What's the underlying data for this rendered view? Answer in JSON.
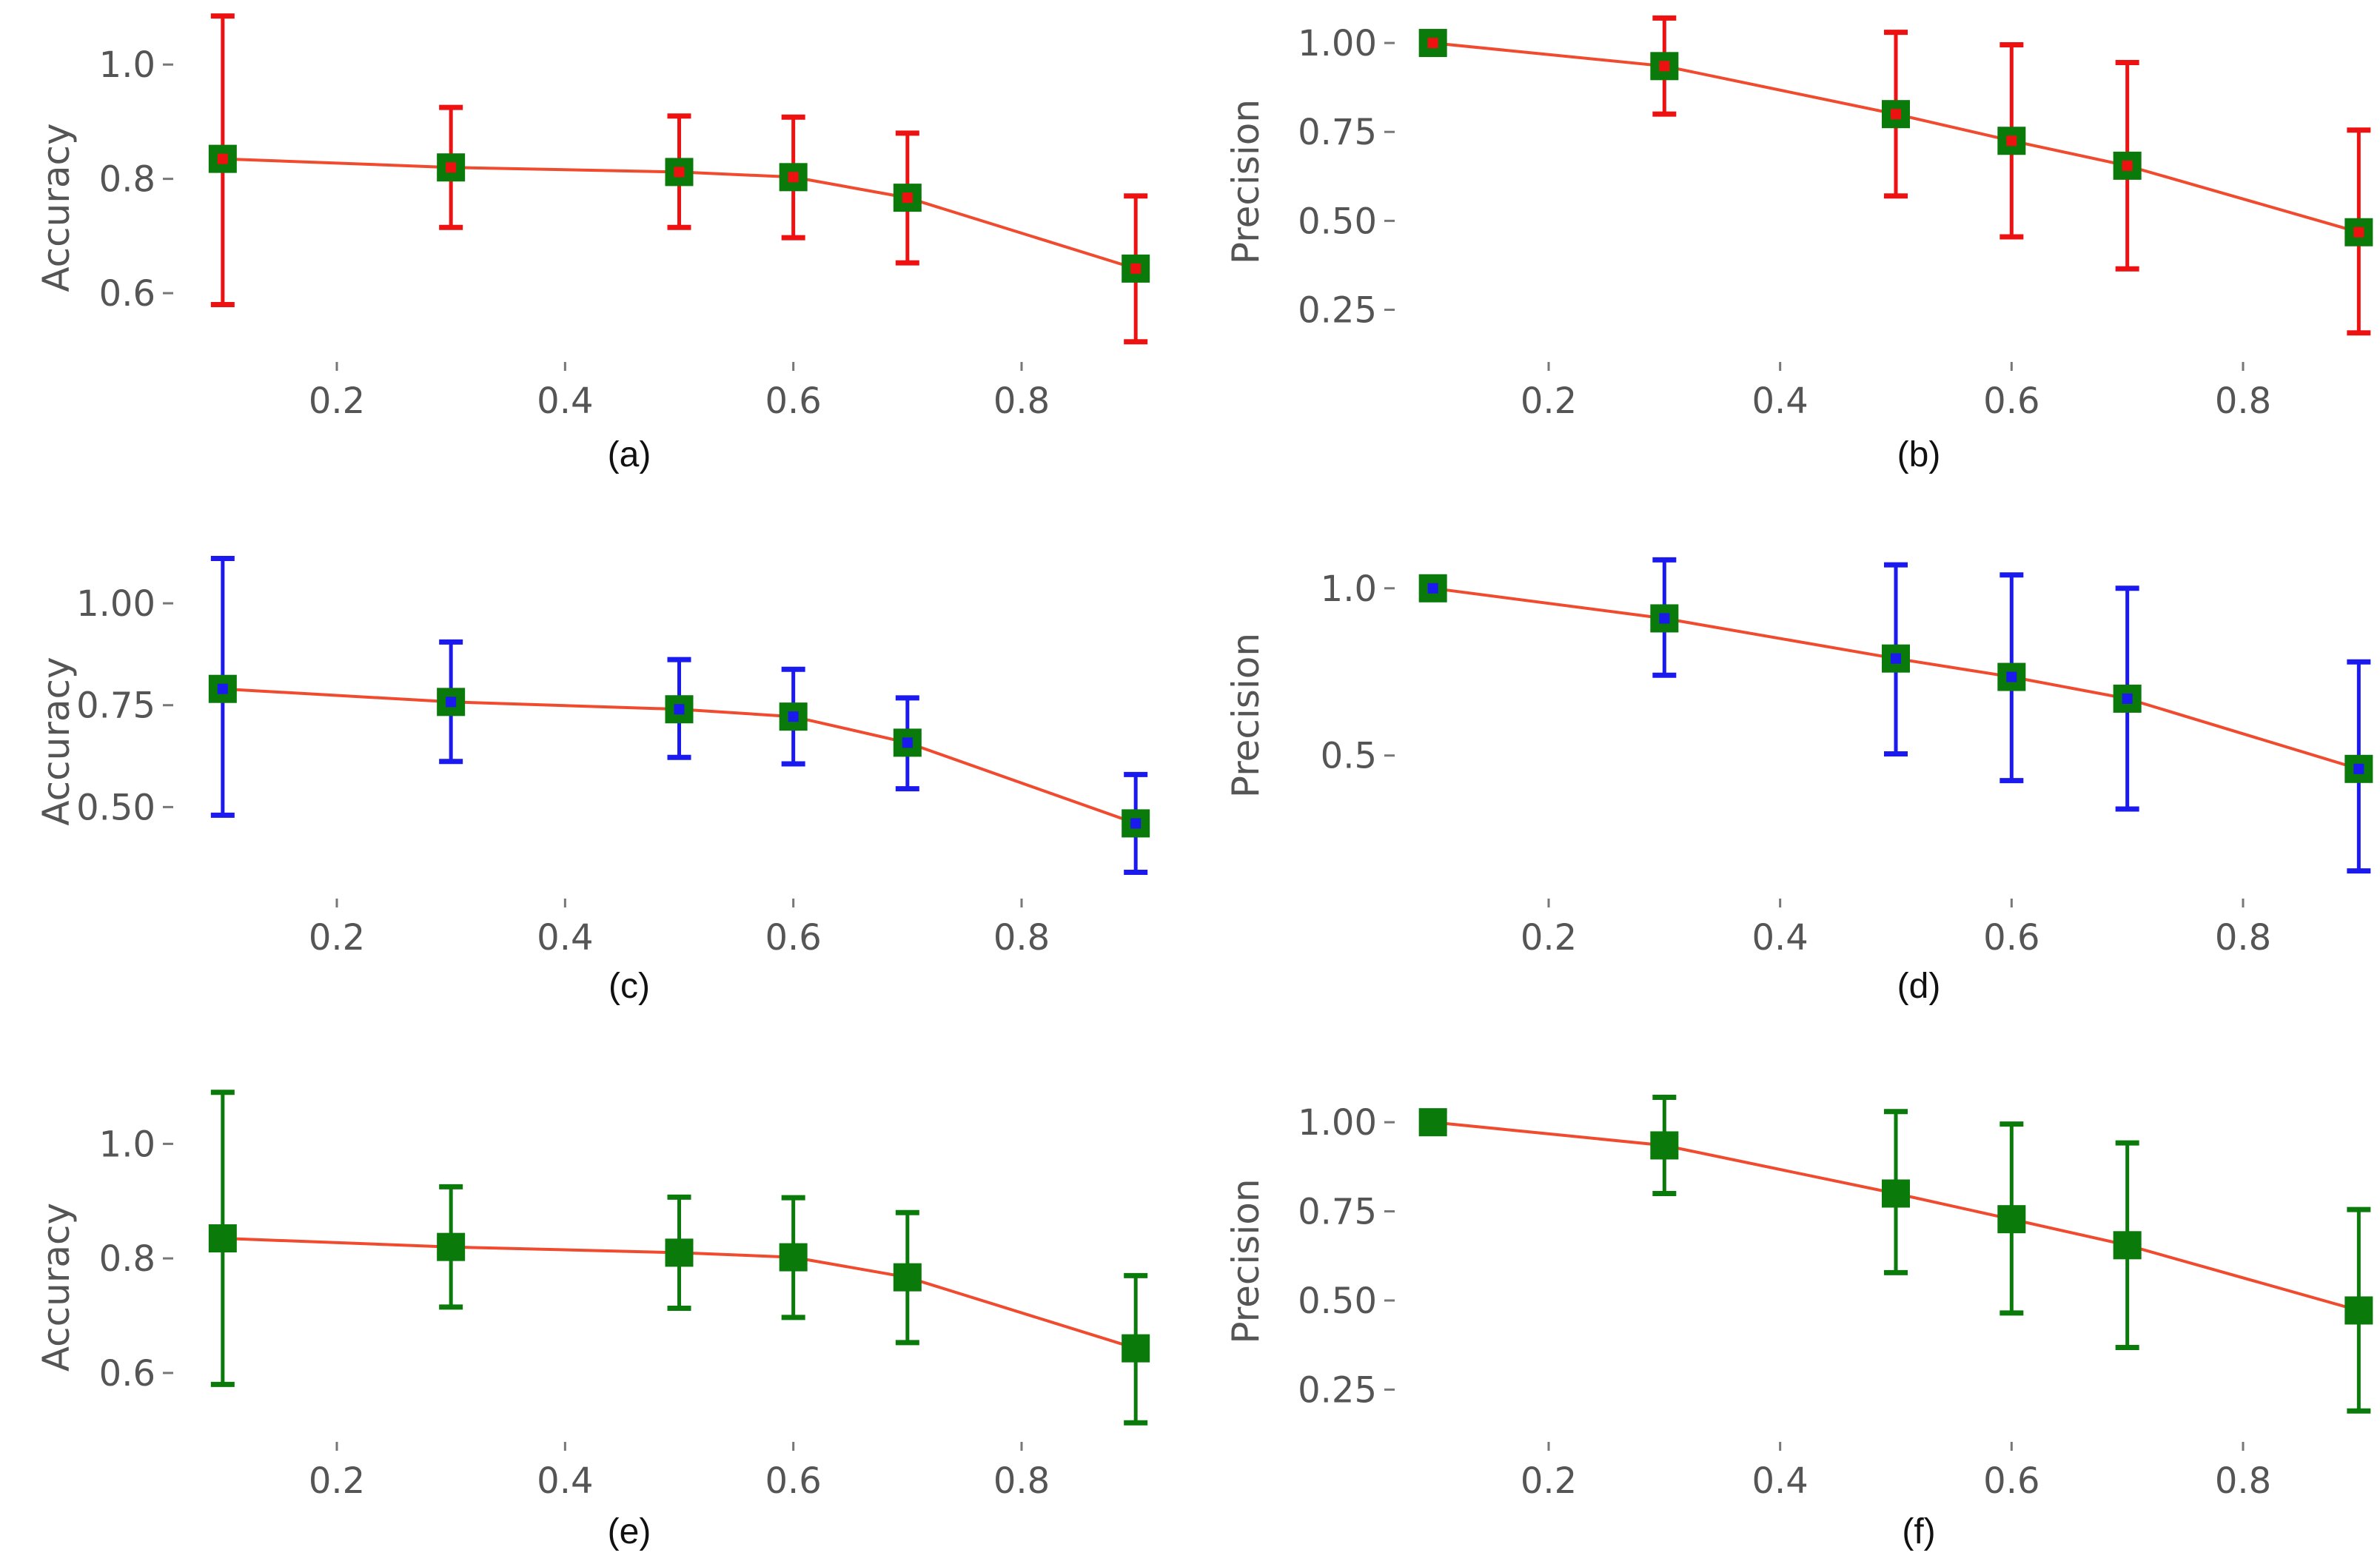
{
  "figure": {
    "background": "#ffffff",
    "line_color": "#f04a2f",
    "marker_color": "#0a7a0a"
  },
  "chart_data": [
    {
      "type": "line",
      "panel": "a",
      "caption": "(a)",
      "ylabel": "Accuracy",
      "x": [
        0.1,
        0.3,
        0.5,
        0.6,
        0.7,
        0.9
      ],
      "y": [
        0.835,
        0.82,
        0.812,
        0.803,
        0.767,
        0.643
      ],
      "err_upper": [
        1.085,
        0.925,
        0.91,
        0.908,
        0.88,
        0.77
      ],
      "err_lower": [
        0.58,
        0.715,
        0.715,
        0.697,
        0.653,
        0.515
      ],
      "xlim": [
        0.07,
        0.93
      ],
      "ylim": [
        0.49,
        1.1
      ],
      "xticks": [
        0.2,
        0.4,
        0.6,
        0.8
      ],
      "xtick_labels": [
        "0.2",
        "0.4",
        "0.6",
        "0.8"
      ],
      "yticks": [
        0.6,
        0.8,
        1.0
      ],
      "ytick_labels": [
        "0.6",
        "0.8",
        "1.0"
      ],
      "error_color": "#ee1111",
      "inner_color": "#ee1111"
    },
    {
      "type": "line",
      "panel": "b",
      "caption": "(b)",
      "ylabel": "Precision",
      "x": [
        0.1,
        0.3,
        0.5,
        0.6,
        0.7,
        0.9
      ],
      "y": [
        1.0,
        0.935,
        0.8,
        0.725,
        0.655,
        0.468
      ],
      "err_upper": [
        1.0,
        1.07,
        1.03,
        0.995,
        0.945,
        0.755
      ],
      "err_lower": [
        1.0,
        0.8,
        0.57,
        0.455,
        0.365,
        0.185
      ],
      "xlim": [
        0.07,
        0.93
      ],
      "ylim": [
        0.12,
        1.1
      ],
      "xticks": [
        0.2,
        0.4,
        0.6,
        0.8
      ],
      "xtick_labels": [
        "0.2",
        "0.4",
        "0.6",
        "0.8"
      ],
      "yticks": [
        0.25,
        0.5,
        0.75,
        1.0
      ],
      "ytick_labels": [
        "0.25",
        "0.50",
        "0.75",
        "1.00"
      ],
      "error_color": "#ee1111",
      "inner_color": "#ee1111"
    },
    {
      "type": "line",
      "panel": "c",
      "caption": "(c)",
      "ylabel": "Accuracy",
      "x": [
        0.1,
        0.3,
        0.5,
        0.6,
        0.7,
        0.9
      ],
      "y": [
        0.79,
        0.758,
        0.74,
        0.722,
        0.658,
        0.46
      ],
      "err_upper": [
        1.11,
        0.905,
        0.862,
        0.838,
        0.768,
        0.58
      ],
      "err_lower": [
        0.48,
        0.612,
        0.622,
        0.606,
        0.545,
        0.34
      ],
      "xlim": [
        0.07,
        0.93
      ],
      "ylim": [
        0.29,
        1.16
      ],
      "xticks": [
        0.2,
        0.4,
        0.6,
        0.8
      ],
      "xtick_labels": [
        "0.2",
        "0.4",
        "0.6",
        "0.8"
      ],
      "yticks": [
        0.5,
        0.75,
        1.0
      ],
      "ytick_labels": [
        "0.50",
        "0.75",
        "1.00"
      ],
      "error_color": "#1a1aee",
      "inner_color": "#1a1aee"
    },
    {
      "type": "line",
      "panel": "d",
      "caption": "(d)",
      "ylabel": "Precision",
      "x": [
        0.1,
        0.3,
        0.5,
        0.6,
        0.7,
        0.9
      ],
      "y": [
        1.0,
        0.91,
        0.79,
        0.735,
        0.67,
        0.46
      ],
      "err_upper": [
        1.0,
        1.085,
        1.07,
        1.04,
        1.0,
        0.78
      ],
      "err_lower": [
        1.0,
        0.74,
        0.505,
        0.425,
        0.34,
        0.155
      ],
      "xlim": [
        0.07,
        0.93
      ],
      "ylim": [
        0.09,
        1.15
      ],
      "xticks": [
        0.2,
        0.4,
        0.6,
        0.8
      ],
      "xtick_labels": [
        "0.2",
        "0.4",
        "0.6",
        "0.8"
      ],
      "yticks": [
        0.5,
        1.0
      ],
      "ytick_labels": [
        "0.5",
        "1.0"
      ],
      "error_color": "#1a1aee",
      "inner_color": "#1a1aee"
    },
    {
      "type": "line",
      "panel": "e",
      "caption": "(e)",
      "ylabel": "Accuracy",
      "x": [
        0.1,
        0.3,
        0.5,
        0.6,
        0.7,
        0.9
      ],
      "y": [
        0.835,
        0.82,
        0.81,
        0.802,
        0.767,
        0.643
      ],
      "err_upper": [
        1.09,
        0.925,
        0.907,
        0.906,
        0.88,
        0.77
      ],
      "err_lower": [
        0.58,
        0.715,
        0.713,
        0.697,
        0.653,
        0.513
      ],
      "xlim": [
        0.07,
        0.93
      ],
      "ylim": [
        0.49,
        1.1
      ],
      "xticks": [
        0.2,
        0.4,
        0.6,
        0.8
      ],
      "xtick_labels": [
        "0.2",
        "0.4",
        "0.6",
        "0.8"
      ],
      "yticks": [
        0.6,
        0.8,
        1.0
      ],
      "ytick_labels": [
        "0.6",
        "0.8",
        "1.0"
      ],
      "error_color": "#0a7a0a",
      "inner_color": "#0a7a0a"
    },
    {
      "type": "line",
      "panel": "f",
      "caption": "(f)",
      "ylabel": "Precision",
      "x": [
        0.1,
        0.3,
        0.5,
        0.6,
        0.7,
        0.9
      ],
      "y": [
        1.0,
        0.935,
        0.8,
        0.728,
        0.655,
        0.472
      ],
      "err_upper": [
        1.0,
        1.07,
        1.03,
        0.995,
        0.942,
        0.755
      ],
      "err_lower": [
        1.0,
        0.8,
        0.578,
        0.465,
        0.368,
        0.19
      ],
      "xlim": [
        0.07,
        0.93
      ],
      "ylim": [
        0.12,
        1.1
      ],
      "xticks": [
        0.2,
        0.4,
        0.6,
        0.8
      ],
      "xtick_labels": [
        "0.2",
        "0.4",
        "0.6",
        "0.8"
      ],
      "yticks": [
        0.25,
        0.5,
        0.75,
        1.0
      ],
      "ytick_labels": [
        "0.25",
        "0.50",
        "0.75",
        "1.00"
      ],
      "error_color": "#0a7a0a",
      "inner_color": "#0a7a0a"
    }
  ]
}
